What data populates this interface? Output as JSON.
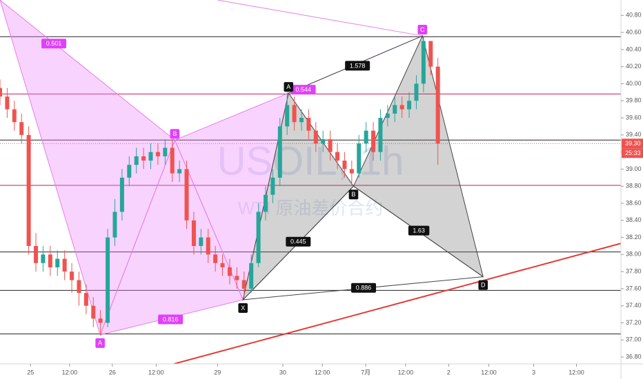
{
  "chart_data": {
    "type": "candlestick",
    "title": "USOIL, 1h",
    "subtitle": "WTI 原油差价合约",
    "up_color": "#26a69a",
    "down_color": "#ef5350",
    "xlim": [
      0,
      173
    ],
    "ylim": [
      36.72,
      40.98
    ],
    "x": [
      0,
      2,
      4,
      6,
      8,
      10,
      12,
      14,
      16,
      18,
      20,
      22,
      24,
      26,
      28,
      30,
      32,
      34,
      36,
      38,
      40,
      42,
      44,
      46,
      48,
      50,
      52,
      54,
      56,
      58,
      60,
      62,
      64,
      66,
      68,
      70,
      72,
      74,
      76,
      78,
      80,
      82,
      84,
      86,
      88,
      90,
      92,
      94,
      96,
      98,
      100,
      102,
      104,
      106,
      108,
      110,
      112,
      114,
      116,
      118,
      120,
      122
    ],
    "open": [
      39.95,
      39.85,
      39.7,
      39.55,
      39.4,
      38.1,
      37.9,
      38.0,
      37.85,
      37.95,
      37.8,
      37.7,
      37.55,
      37.4,
      37.25,
      37.2,
      38.2,
      38.5,
      38.9,
      39.05,
      39.15,
      39.1,
      39.2,
      39.15,
      39.25,
      38.95,
      39.0,
      38.4,
      38.1,
      38.2,
      38.0,
      37.9,
      37.85,
      37.75,
      37.7,
      37.6,
      37.9,
      38.5,
      38.7,
      38.9,
      39.5,
      39.75,
      39.55,
      39.6,
      39.45,
      39.3,
      39.35,
      39.2,
      39.1,
      39.0,
      38.95,
      39.3,
      39.45,
      39.2,
      39.6,
      39.65,
      39.75,
      39.7,
      39.8,
      40.0,
      40.5,
      40.2
    ],
    "high": [
      40.05,
      39.95,
      39.8,
      39.65,
      39.5,
      38.25,
      38.1,
      38.1,
      38.05,
      38.05,
      37.9,
      37.8,
      37.65,
      37.5,
      37.35,
      38.3,
      38.65,
      39.0,
      39.15,
      39.25,
      39.25,
      39.3,
      39.3,
      39.35,
      39.35,
      39.1,
      39.1,
      38.5,
      38.3,
      38.3,
      38.1,
      38.0,
      37.95,
      37.85,
      37.8,
      38.0,
      38.6,
      38.8,
      39.0,
      39.6,
      39.9,
      39.85,
      39.7,
      39.7,
      39.55,
      39.45,
      39.45,
      39.3,
      39.2,
      39.1,
      39.4,
      39.55,
      39.55,
      39.7,
      39.75,
      39.85,
      39.85,
      39.9,
      40.1,
      40.55,
      40.5,
      40.3
    ],
    "low": [
      39.75,
      39.6,
      39.45,
      39.3,
      38.0,
      37.8,
      37.8,
      37.75,
      37.75,
      37.7,
      37.55,
      37.4,
      37.3,
      37.15,
      37.05,
      37.15,
      38.1,
      38.4,
      38.8,
      38.95,
      39.0,
      39.0,
      39.05,
      39.05,
      38.85,
      38.85,
      38.3,
      38.0,
      38.0,
      37.9,
      37.8,
      37.75,
      37.65,
      37.6,
      37.5,
      37.55,
      37.85,
      38.4,
      38.6,
      38.8,
      39.4,
      39.45,
      39.45,
      39.35,
      39.2,
      39.2,
      39.1,
      39.0,
      38.9,
      38.8,
      38.9,
      39.2,
      39.1,
      39.1,
      39.5,
      39.55,
      39.6,
      39.6,
      39.7,
      39.9,
      40.1,
      39.05
    ],
    "close": [
      39.85,
      39.7,
      39.55,
      39.4,
      38.1,
      37.9,
      38.0,
      37.85,
      37.95,
      37.8,
      37.7,
      37.55,
      37.4,
      37.25,
      37.2,
      38.2,
      38.5,
      38.9,
      39.05,
      39.15,
      39.1,
      39.2,
      39.15,
      39.25,
      38.95,
      39.0,
      38.4,
      38.1,
      38.2,
      38.0,
      37.9,
      37.85,
      37.75,
      37.7,
      37.6,
      37.9,
      38.5,
      38.7,
      38.9,
      39.5,
      39.75,
      39.55,
      39.6,
      39.45,
      39.3,
      39.35,
      39.2,
      39.1,
      39.0,
      38.95,
      39.3,
      39.45,
      39.2,
      39.6,
      39.65,
      39.75,
      39.7,
      39.8,
      40.0,
      40.5,
      40.2,
      39.3
    ],
    "xticks": [
      {
        "value": 8.5,
        "label": "25"
      },
      {
        "value": 19.4,
        "label": "12:00"
      },
      {
        "value": 31.3,
        "label": "26"
      },
      {
        "value": 43.5,
        "label": "12:00"
      },
      {
        "value": 60.6,
        "label": "29"
      },
      {
        "value": 78.8,
        "label": "30"
      },
      {
        "value": 89.8,
        "label": "12:00"
      },
      {
        "value": 101.9,
        "label": "7月"
      },
      {
        "value": 113,
        "label": "12:00"
      },
      {
        "value": 125,
        "label": "2"
      },
      {
        "value": 136.2,
        "label": "12:00"
      },
      {
        "value": 148.7,
        "label": "3"
      },
      {
        "value": 160.6,
        "label": "12:00"
      }
    ],
    "yticks": [
      {
        "value": 40.8,
        "label": "40.80"
      },
      {
        "value": 40.6,
        "label": "40.60"
      },
      {
        "value": 40.4,
        "label": "40.40"
      },
      {
        "value": 40.2,
        "label": "40.20"
      },
      {
        "value": 40.0,
        "label": "40.00"
      },
      {
        "value": 39.8,
        "label": "39.80"
      },
      {
        "value": 39.6,
        "label": "39.60"
      },
      {
        "value": 39.4,
        "label": "39.40"
      },
      {
        "value": 39.2,
        "label": "39.20"
      },
      {
        "value": 39.0,
        "label": "39.00"
      },
      {
        "value": 38.8,
        "label": "38.80"
      },
      {
        "value": 38.6,
        "label": "38.60"
      },
      {
        "value": 38.4,
        "label": "38.40"
      },
      {
        "value": 38.2,
        "label": "38.20"
      },
      {
        "value": 38.0,
        "label": "38.00"
      },
      {
        "value": 37.8,
        "label": "37.80"
      },
      {
        "value": 37.6,
        "label": "37.60"
      },
      {
        "value": 37.4,
        "label": "37.40"
      },
      {
        "value": 37.2,
        "label": "37.20"
      },
      {
        "value": 37.0,
        "label": "37.00"
      },
      {
        "value": 36.8,
        "label": "36.80"
      }
    ],
    "hlines": [
      {
        "value": 40.55,
        "color": "#222222"
      },
      {
        "value": 39.88,
        "color": "#c2185b"
      },
      {
        "value": 39.34,
        "color": "#222222"
      },
      {
        "value": 38.81,
        "color": "#c2185b"
      },
      {
        "value": 38.03,
        "color": "#222222"
      },
      {
        "value": 37.58,
        "color": "#222222"
      },
      {
        "value": 37.07,
        "color": "#222222"
      }
    ],
    "trendline": {
      "x": [
        48.5,
        173
      ],
      "y": [
        36.72,
        38.13
      ],
      "color": "#e53935"
    },
    "last_price": {
      "value": 39.3,
      "label": "39.30",
      "color": "#ef5350"
    },
    "countdown": "25:33",
    "patterns": [
      {
        "fill": "rgba(234,128,252,0.35)",
        "stroke": "#e57ee8",
        "label_color": "#e040fb",
        "points": [
          {
            "x": 0,
            "y": 40.98
          },
          {
            "x": 27.9,
            "y": 37.06,
            "label": "A",
            "pos": "below"
          },
          {
            "x": 48.7,
            "y": 39.34,
            "label": "B",
            "pos": "above"
          },
          {
            "x": 67.7,
            "y": 37.47
          },
          {
            "x": 80.4,
            "y": 39.89
          },
          {
            "x": 60.6,
            "y": 40.98
          },
          {
            "x": 117.7,
            "y": 40.56,
            "label": "C",
            "pos": "above"
          }
        ],
        "polygons": [
          [
            0,
            1,
            2
          ],
          [
            1,
            2,
            3
          ],
          [
            2,
            3,
            4
          ]
        ],
        "lines": [
          [
            5,
            6
          ],
          [
            4,
            6
          ]
        ],
        "ratios": [
          {
            "text": "0.501",
            "x": 15,
            "y": 40.47
          },
          {
            "text": "0.816",
            "x": 47.5,
            "y": 37.24
          },
          {
            "text": "0.544",
            "x": 84.5,
            "y": 39.93
          }
        ]
      },
      {
        "fill": "rgba(110,110,110,0.3)",
        "stroke": "#444444",
        "label_color": "#111111",
        "points": [
          {
            "x": 67.7,
            "y": 37.47,
            "label": "X",
            "pos": "below"
          },
          {
            "x": 80.4,
            "y": 39.89,
            "label": "A",
            "pos": "above"
          },
          {
            "x": 98.5,
            "y": 38.8,
            "label": "B",
            "pos": "below"
          },
          {
            "x": 117.7,
            "y": 40.56
          },
          {
            "x": 134.6,
            "y": 37.74,
            "label": "D",
            "pos": "below"
          }
        ],
        "polygons": [
          [
            0,
            1,
            2
          ],
          [
            2,
            3,
            4
          ]
        ],
        "lines": [
          [
            0,
            2
          ],
          [
            2,
            4
          ],
          [
            0,
            4
          ],
          [
            1,
            3
          ]
        ],
        "ratios": [
          {
            "text": "1.578",
            "x": 99.6,
            "y": 40.21
          },
          {
            "text": "0.445",
            "x": 83.1,
            "y": 38.15
          },
          {
            "text": "1.63",
            "x": 116.7,
            "y": 38.28
          },
          {
            "text": "0.886",
            "x": 101.3,
            "y": 37.61
          }
        ]
      }
    ]
  }
}
